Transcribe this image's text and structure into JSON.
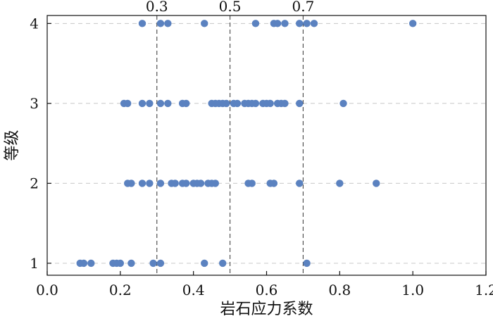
{
  "chart_data": {
    "type": "scatter",
    "xlabel": "岩石应力系数",
    "ylabel": "等级",
    "xlim": [
      0.0,
      1.2
    ],
    "ylim": [
      0.85,
      4.1
    ],
    "xticks": [
      0.0,
      0.2,
      0.4,
      0.6,
      0.8,
      1.0,
      1.2
    ],
    "xtick_labels": [
      "0.0",
      "0.2",
      "0.4",
      "0.6",
      "0.8",
      "1.0",
      "1.2"
    ],
    "yticks": [
      1,
      2,
      3,
      4
    ],
    "ytick_labels": [
      "1",
      "2",
      "3",
      "4"
    ],
    "grid": "horizontal dashed",
    "reference_lines": [
      {
        "x": 0.3,
        "label": "0.3"
      },
      {
        "x": 0.5,
        "label": "0.5"
      },
      {
        "x": 0.7,
        "label": "0.7"
      }
    ],
    "marker_color": "#5b82c0",
    "points": [
      {
        "x": 0.09,
        "y": 1
      },
      {
        "x": 0.1,
        "y": 1
      },
      {
        "x": 0.12,
        "y": 1
      },
      {
        "x": 0.18,
        "y": 1
      },
      {
        "x": 0.19,
        "y": 1
      },
      {
        "x": 0.2,
        "y": 1
      },
      {
        "x": 0.23,
        "y": 1
      },
      {
        "x": 0.29,
        "y": 1
      },
      {
        "x": 0.31,
        "y": 1
      },
      {
        "x": 0.43,
        "y": 1
      },
      {
        "x": 0.48,
        "y": 1
      },
      {
        "x": 0.71,
        "y": 1
      },
      {
        "x": 0.22,
        "y": 2
      },
      {
        "x": 0.23,
        "y": 2
      },
      {
        "x": 0.26,
        "y": 2
      },
      {
        "x": 0.28,
        "y": 2
      },
      {
        "x": 0.31,
        "y": 2
      },
      {
        "x": 0.34,
        "y": 2
      },
      {
        "x": 0.35,
        "y": 2
      },
      {
        "x": 0.37,
        "y": 2
      },
      {
        "x": 0.38,
        "y": 2
      },
      {
        "x": 0.4,
        "y": 2
      },
      {
        "x": 0.41,
        "y": 2
      },
      {
        "x": 0.42,
        "y": 2
      },
      {
        "x": 0.44,
        "y": 2
      },
      {
        "x": 0.45,
        "y": 2
      },
      {
        "x": 0.46,
        "y": 2
      },
      {
        "x": 0.55,
        "y": 2
      },
      {
        "x": 0.56,
        "y": 2
      },
      {
        "x": 0.61,
        "y": 2
      },
      {
        "x": 0.62,
        "y": 2
      },
      {
        "x": 0.69,
        "y": 2
      },
      {
        "x": 0.8,
        "y": 2
      },
      {
        "x": 0.9,
        "y": 2
      },
      {
        "x": 0.21,
        "y": 3
      },
      {
        "x": 0.22,
        "y": 3
      },
      {
        "x": 0.26,
        "y": 3
      },
      {
        "x": 0.28,
        "y": 3
      },
      {
        "x": 0.31,
        "y": 3
      },
      {
        "x": 0.33,
        "y": 3
      },
      {
        "x": 0.37,
        "y": 3
      },
      {
        "x": 0.38,
        "y": 3
      },
      {
        "x": 0.45,
        "y": 3
      },
      {
        "x": 0.46,
        "y": 3
      },
      {
        "x": 0.47,
        "y": 3
      },
      {
        "x": 0.48,
        "y": 3
      },
      {
        "x": 0.49,
        "y": 3
      },
      {
        "x": 0.51,
        "y": 3
      },
      {
        "x": 0.52,
        "y": 3
      },
      {
        "x": 0.54,
        "y": 3
      },
      {
        "x": 0.55,
        "y": 3
      },
      {
        "x": 0.56,
        "y": 3
      },
      {
        "x": 0.57,
        "y": 3
      },
      {
        "x": 0.59,
        "y": 3
      },
      {
        "x": 0.6,
        "y": 3
      },
      {
        "x": 0.61,
        "y": 3
      },
      {
        "x": 0.63,
        "y": 3
      },
      {
        "x": 0.64,
        "y": 3
      },
      {
        "x": 0.65,
        "y": 3
      },
      {
        "x": 0.69,
        "y": 3
      },
      {
        "x": 0.81,
        "y": 3
      },
      {
        "x": 0.26,
        "y": 4
      },
      {
        "x": 0.31,
        "y": 4
      },
      {
        "x": 0.33,
        "y": 4
      },
      {
        "x": 0.43,
        "y": 4
      },
      {
        "x": 0.57,
        "y": 4
      },
      {
        "x": 0.62,
        "y": 4
      },
      {
        "x": 0.63,
        "y": 4
      },
      {
        "x": 0.65,
        "y": 4
      },
      {
        "x": 0.69,
        "y": 4
      },
      {
        "x": 0.71,
        "y": 4
      },
      {
        "x": 0.73,
        "y": 4
      },
      {
        "x": 1.0,
        "y": 4
      }
    ]
  }
}
